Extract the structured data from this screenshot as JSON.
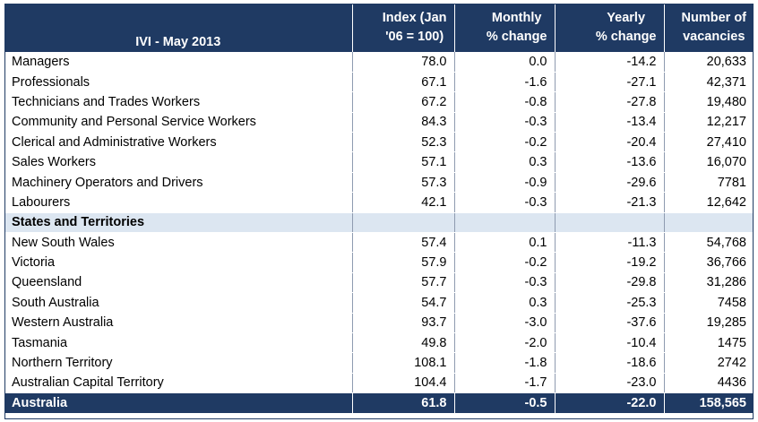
{
  "header": {
    "title": "IVI - May 2013",
    "col1": [
      "Index (Jan",
      "'06 = 100)"
    ],
    "col2": [
      "Monthly",
      "% change"
    ],
    "col3": [
      "Yearly",
      "% change"
    ],
    "col4": [
      "Number of",
      "vacancies"
    ]
  },
  "occupations": [
    {
      "label": "Managers",
      "index": "78.0",
      "monthly": "0.0",
      "yearly": "-14.2",
      "vacancies": "20,633"
    },
    {
      "label": "Professionals",
      "index": "67.1",
      "monthly": "-1.6",
      "yearly": "-27.1",
      "vacancies": "42,371"
    },
    {
      "label": "Technicians and Trades Workers",
      "index": "67.2",
      "monthly": "-0.8",
      "yearly": "-27.8",
      "vacancies": "19,480"
    },
    {
      "label": "Community and Personal Service Workers",
      "index": "84.3",
      "monthly": "-0.3",
      "yearly": "-13.4",
      "vacancies": "12,217"
    },
    {
      "label": "Clerical and Administrative Workers",
      "index": "52.3",
      "monthly": "-0.2",
      "yearly": "-20.4",
      "vacancies": "27,410"
    },
    {
      "label": "Sales Workers",
      "index": "57.1",
      "monthly": "0.3",
      "yearly": "-13.6",
      "vacancies": "16,070"
    },
    {
      "label": "Machinery Operators and Drivers",
      "index": "57.3",
      "monthly": "-0.9",
      "yearly": "-29.6",
      "vacancies": "7781"
    },
    {
      "label": "Labourers",
      "index": "42.1",
      "monthly": "-0.3",
      "yearly": "-21.3",
      "vacancies": "12,642"
    }
  ],
  "section_label": "States and Territories",
  "states": [
    {
      "label": "New South Wales",
      "index": "57.4",
      "monthly": "0.1",
      "yearly": "-11.3",
      "vacancies": "54,768"
    },
    {
      "label": "Victoria",
      "index": "57.9",
      "monthly": "-0.2",
      "yearly": "-19.2",
      "vacancies": "36,766"
    },
    {
      "label": "Queensland",
      "index": "57.7",
      "monthly": "-0.3",
      "yearly": "-29.8",
      "vacancies": "31,286"
    },
    {
      "label": "South Australia",
      "index": "54.7",
      "monthly": "0.3",
      "yearly": "-25.3",
      "vacancies": "7458"
    },
    {
      "label": "Western Australia",
      "index": "93.7",
      "monthly": "-3.0",
      "yearly": "-37.6",
      "vacancies": "19,285"
    },
    {
      "label": "Tasmania",
      "index": "49.8",
      "monthly": "-2.0",
      "yearly": "-10.4",
      "vacancies": "1475"
    },
    {
      "label": "Northern Territory",
      "index": "108.1",
      "monthly": "-1.8",
      "yearly": "-18.6",
      "vacancies": "2742"
    },
    {
      "label": "Australian Capital Territory",
      "index": "104.4",
      "monthly": "-1.7",
      "yearly": "-23.0",
      "vacancies": "4436"
    }
  ],
  "total": {
    "label": "Australia",
    "index": "61.8",
    "monthly": "-0.5",
    "yearly": "-22.0",
    "vacancies": "158,565"
  },
  "colors": {
    "header_bg": "#1f3a63",
    "section_bg": "#dce6f1",
    "header_text": "#ffffff"
  }
}
